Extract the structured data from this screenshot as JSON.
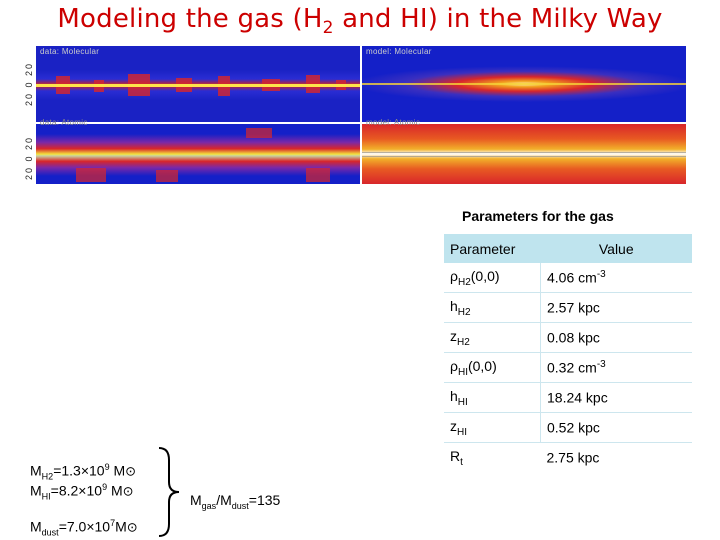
{
  "title": {
    "pre": "Modeling the gas (H",
    "sub": "2",
    "post": " and HI) in the Milky Way"
  },
  "maps": {
    "data_molecular": "data: Molecular",
    "model_molecular": "model: Molecular",
    "data_atomic": "data: Atomic",
    "model_atomic": "model: Atomic",
    "lat_ticks": "20  0  20"
  },
  "params": {
    "title": "Parameters for the gas",
    "header_param": "Parameter",
    "header_value": "Value",
    "rows": [
      {
        "sym": "ρ",
        "sub": "H2",
        "suffix": "(0,0)",
        "value": "4.06 cm",
        "sup": "-3"
      },
      {
        "sym": "h",
        "sub": "H2",
        "suffix": "",
        "value": "2.57 kpc",
        "sup": ""
      },
      {
        "sym": "z",
        "sub": "H2",
        "suffix": "",
        "value": "0.08 kpc",
        "sup": ""
      },
      {
        "sym": "ρ",
        "sub": "HI",
        "suffix": "(0,0)",
        "value": "0.32 cm",
        "sup": "-3"
      },
      {
        "sym": "h",
        "sub": "HI",
        "suffix": "",
        "value": "18.24 kpc",
        "sup": ""
      },
      {
        "sym": "z",
        "sub": "HI",
        "suffix": "",
        "value": "0.52 kpc",
        "sup": ""
      },
      {
        "sym": "R",
        "sub": "t",
        "suffix": "",
        "value": "2.75 kpc",
        "sup": ""
      }
    ]
  },
  "masses": {
    "h2": {
      "m": "M",
      "sub": "H2",
      "eq": "=1.3×10",
      "exp": "9",
      "unit": " M",
      "sun": "⊙"
    },
    "hi": {
      "m": "M",
      "sub": "HI",
      "eq": "=8.2×10",
      "exp": "9",
      "unit": " M",
      "sun": "⊙"
    },
    "dust": {
      "m": "M",
      "sub": "dust",
      "eq": "=7.0×10",
      "exp": "7",
      "unit": "M",
      "sun": "⊙"
    },
    "ratio": {
      "m1": "M",
      "sub1": "gas",
      "slash": "/M",
      "sub2": "dust",
      "eq": "=135"
    }
  },
  "colors": {
    "title": "#cc0000",
    "table_header": "#bfe4ee",
    "map_bg": "#1420c8"
  }
}
